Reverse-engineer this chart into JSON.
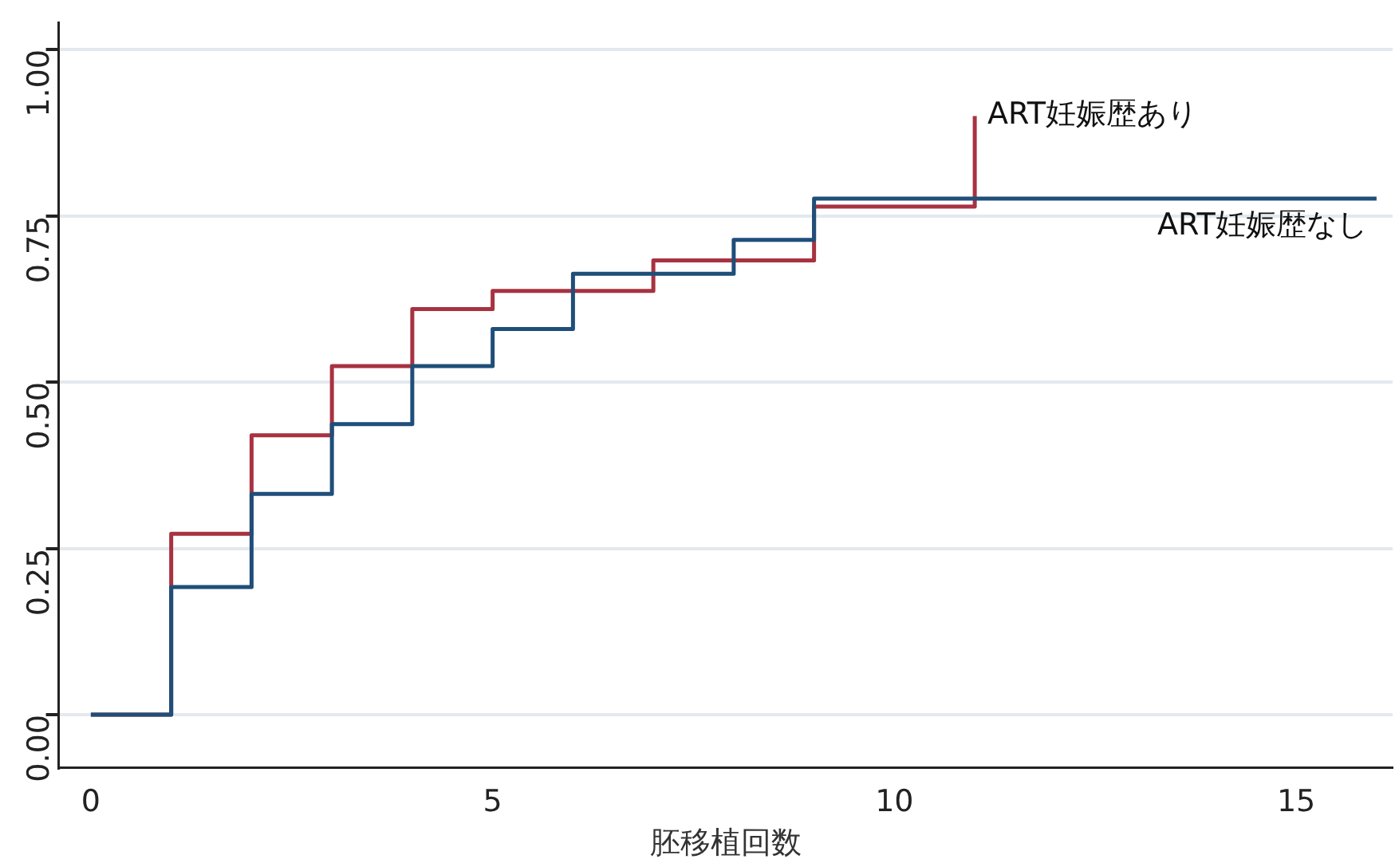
{
  "chart_data": {
    "type": "step",
    "xlabel": "胚移植回数",
    "xlim": [
      -0.4,
      16.2
    ],
    "xticks": [
      0,
      5,
      10,
      15
    ],
    "ylim": [
      -0.08,
      1.04
    ],
    "yticks": [
      {
        "value": 0,
        "label": "0.00"
      },
      {
        "value": 0.25,
        "label": "0.25"
      },
      {
        "value": 0.5,
        "label": "0.50"
      },
      {
        "value": 0.75,
        "label": "0.75"
      },
      {
        "value": 1,
        "label": "1.00"
      }
    ],
    "grid": "y",
    "legend": false,
    "series": [
      {
        "name": "ART妊娠歴なし",
        "color": "#1f4e79",
        "x": [
          0,
          1,
          2,
          3,
          4,
          5,
          6,
          8,
          9,
          16
        ],
        "values": [
          0,
          0.192,
          0.332,
          0.437,
          0.524,
          0.58,
          0.663,
          0.714,
          0.776,
          0.776
        ]
      },
      {
        "name": "ART妊娠歴あり",
        "color": "#a83240",
        "x": [
          0,
          1,
          2,
          3,
          4,
          5,
          7,
          9,
          11,
          11
        ],
        "values": [
          0,
          0.272,
          0.42,
          0.524,
          0.61,
          0.637,
          0.683,
          0.764,
          0.764,
          0.9
        ]
      }
    ]
  }
}
